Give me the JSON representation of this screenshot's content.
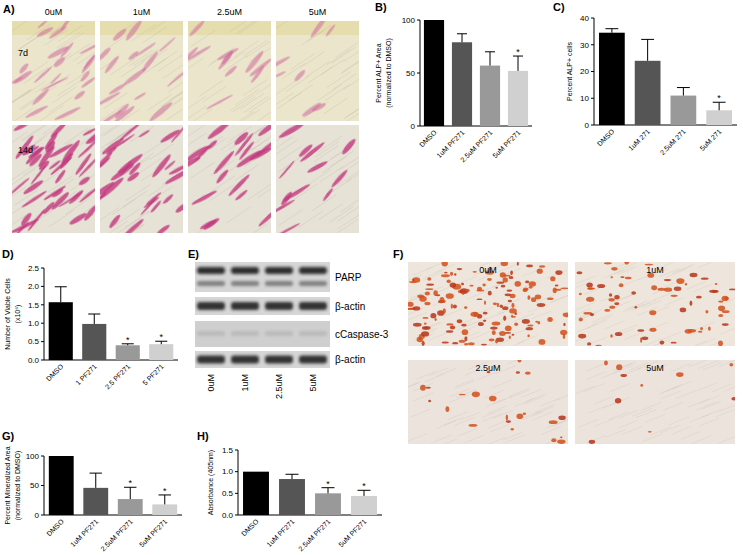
{
  "chart_data": [
    {
      "type": "bar",
      "title": "B)",
      "ylabel": [
        "Percent ALP+ Area",
        "(normalized to DMSO)"
      ],
      "categories": [
        "DMSO",
        "1uM PF271",
        "2.5uM PF271",
        "5uM PF271"
      ],
      "values": [
        100,
        79,
        57,
        52
      ],
      "errors": [
        null,
        8,
        13,
        14
      ],
      "significance": [
        null,
        null,
        null,
        "*"
      ],
      "colors": [
        "#000000",
        "#555555",
        "#999999",
        "#d0d0d0"
      ],
      "ylim": [
        0,
        100
      ],
      "yticks": [
        0,
        50,
        100
      ]
    },
    {
      "type": "bar",
      "title": "C)",
      "ylabel": [
        "Percent ALP+ cells"
      ],
      "categories": [
        "DMSO",
        "1uM 271",
        "2.5uM 271",
        "5uM 271"
      ],
      "values": [
        34.5,
        24,
        11,
        5.5
      ],
      "errors": [
        1.5,
        8,
        3,
        3
      ],
      "significance": [
        null,
        null,
        null,
        "*"
      ],
      "colors": [
        "#000000",
        "#555555",
        "#999999",
        "#d0d0d0"
      ],
      "ylim": [
        0,
        40
      ],
      "yticks": [
        0,
        10,
        20,
        30,
        40
      ]
    },
    {
      "type": "bar",
      "title": "D)",
      "ylabel": [
        "Number of Viable Cells",
        "(x10⁶)"
      ],
      "categories": [
        "DMSO",
        "1 PF271",
        "2.5 PF271",
        "5 PF271"
      ],
      "values": [
        1.57,
        0.98,
        0.4,
        0.43
      ],
      "errors": [
        0.42,
        0.27,
        0.04,
        0.08
      ],
      "significance": [
        null,
        null,
        "*",
        "*"
      ],
      "colors": [
        "#000000",
        "#555555",
        "#999999",
        "#d0d0d0"
      ],
      "ylim": [
        0,
        2.5
      ],
      "yticks": [
        {
          "value": 0,
          "label": "0.0"
        },
        0.5,
        {
          "value": 1,
          "label": "1.0"
        },
        1.5,
        {
          "value": 2,
          "label": "2.0"
        },
        2.5
      ]
    },
    {
      "type": "bar",
      "title": "G)",
      "ylabel": [
        "Percent Mineralized Area",
        "(normalized to DMSO)"
      ],
      "categories": [
        "DMSO",
        "1uM PF271",
        "2.5uM PF271",
        "5uM PF271"
      ],
      "values": [
        100,
        46,
        27,
        18
      ],
      "errors": [
        null,
        25,
        20,
        16
      ],
      "significance": [
        null,
        null,
        "*",
        "*"
      ],
      "colors": [
        "#000000",
        "#555555",
        "#999999",
        "#d0d0d0"
      ],
      "ylim": [
        0,
        100
      ],
      "yticks": [
        0,
        50,
        100
      ]
    },
    {
      "type": "bar",
      "title": "H)",
      "ylabel": [
        "Absorbance (405nm)"
      ],
      "categories": [
        "DMSO",
        "1uM PF271",
        "2.5uM PF271",
        "5uM PF271"
      ],
      "values": [
        1.0,
        0.83,
        0.5,
        0.44
      ],
      "errors": [
        null,
        0.11,
        0.13,
        0.13
      ],
      "significance": [
        null,
        null,
        "*",
        "*"
      ],
      "colors": [
        "#000000",
        "#555555",
        "#999999",
        "#d0d0d0"
      ],
      "ylim": [
        0,
        1.5
      ],
      "yticks": [
        {
          "value": 0,
          "label": "0.0"
        },
        0.5,
        {
          "value": 1,
          "label": "1.0"
        },
        1.5
      ]
    }
  ],
  "micrographs": {
    "label": "A)",
    "columns": [
      "0uM",
      "1uM",
      "2.5uM",
      "5uM"
    ],
    "rows": [
      "7d",
      "14d"
    ]
  },
  "western_blot": {
    "label": "E)",
    "bands": [
      "PARP",
      "β-actin",
      "cCaspase-3",
      "β-actin"
    ],
    "lanes": [
      "0uM",
      "1uM",
      "2.5uM",
      "5uM"
    ]
  },
  "mineral_staining": {
    "label": "F)",
    "images": [
      "0uM",
      "1uM",
      "2.5uM",
      "5uM"
    ]
  }
}
